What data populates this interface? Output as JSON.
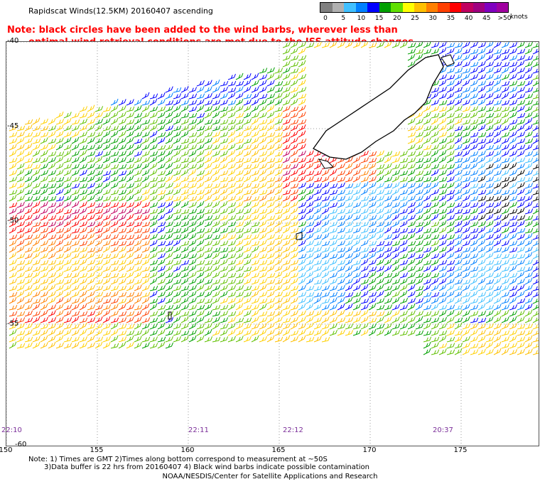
{
  "title": "Rapidscat Winds(12.5KM) 20160407 ascending",
  "note": {
    "line1": "Note: black circles have been added to the wind barbs, wherever less than",
    "line2": "optimal wind retrieval conditions are met due to the ISS attitude changes."
  },
  "legend": {
    "labels": [
      "0",
      "5",
      "10",
      "15",
      "20",
      "25",
      "30",
      "35",
      "40",
      "45",
      ">50"
    ],
    "units": "knots",
    "colors": [
      "#808080",
      "#b0b0b0",
      "#40c0ff",
      "#0080ff",
      "#0000ff",
      "#00a000",
      "#60e000",
      "#ffff00",
      "#ffc000",
      "#ff8000",
      "#ff4000",
      "#ff0000",
      "#c00060",
      "#a00080",
      "#8000c0",
      "#a000a0"
    ]
  },
  "axes": {
    "x_labels": [
      "150",
      "155",
      "160",
      "165",
      "170",
      "175"
    ],
    "y_labels": [
      "-40",
      "-45",
      "-50",
      "-55",
      "-60"
    ]
  },
  "times": [
    "22:10",
    "22:11",
    "22:12",
    "20:37"
  ],
  "footer": {
    "line1": "Note: 1) Times are GMT 2)Times along bottom correspond to measurement at ~50S",
    "line2": "3)Data buffer is 22 hrs from 20160407 4) Black wind barbs indicate possible contamination",
    "credit": "NOAA/NESDIS/Center for Satellite Applications and Research"
  }
}
